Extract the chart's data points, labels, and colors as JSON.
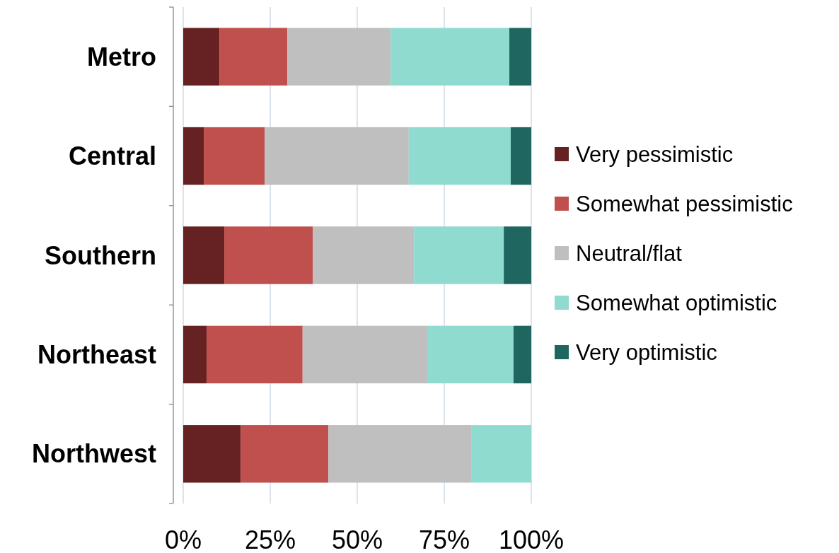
{
  "chart_data": {
    "type": "bar",
    "orientation": "horizontal",
    "stacked": true,
    "categories": [
      "Metro",
      "Central",
      "Southern",
      "Northeast",
      "Northwest"
    ],
    "series": [
      {
        "name": "Very pessimistic",
        "color": "#662222",
        "values": [
          10.4,
          5.9,
          11.8,
          6.7,
          16.5
        ]
      },
      {
        "name": "Somewhat pessimistic",
        "color": "#c0504d",
        "values": [
          19.5,
          17.5,
          25.4,
          27.6,
          25.2
        ]
      },
      {
        "name": "Neutral/flat",
        "color": "#bfbfbf",
        "values": [
          29.7,
          41.4,
          29.1,
          36.0,
          41.2
        ]
      },
      {
        "name": "Somewhat optimistic",
        "color": "#8fdbd0",
        "values": [
          34.1,
          29.3,
          25.8,
          24.6,
          17.1
        ]
      },
      {
        "name": "Very optimistic",
        "color": "#1f6660",
        "values": [
          6.3,
          5.9,
          7.9,
          5.1,
          0
        ]
      }
    ],
    "xlim": [
      0,
      100
    ],
    "xticks": [
      {
        "value": 0,
        "label": "0%"
      },
      {
        "value": 25,
        "label": "25%"
      },
      {
        "value": 50,
        "label": "50%"
      },
      {
        "value": 75,
        "label": "75%"
      },
      {
        "value": 100,
        "label": "100%"
      }
    ],
    "grid": "x",
    "legend": "right"
  }
}
